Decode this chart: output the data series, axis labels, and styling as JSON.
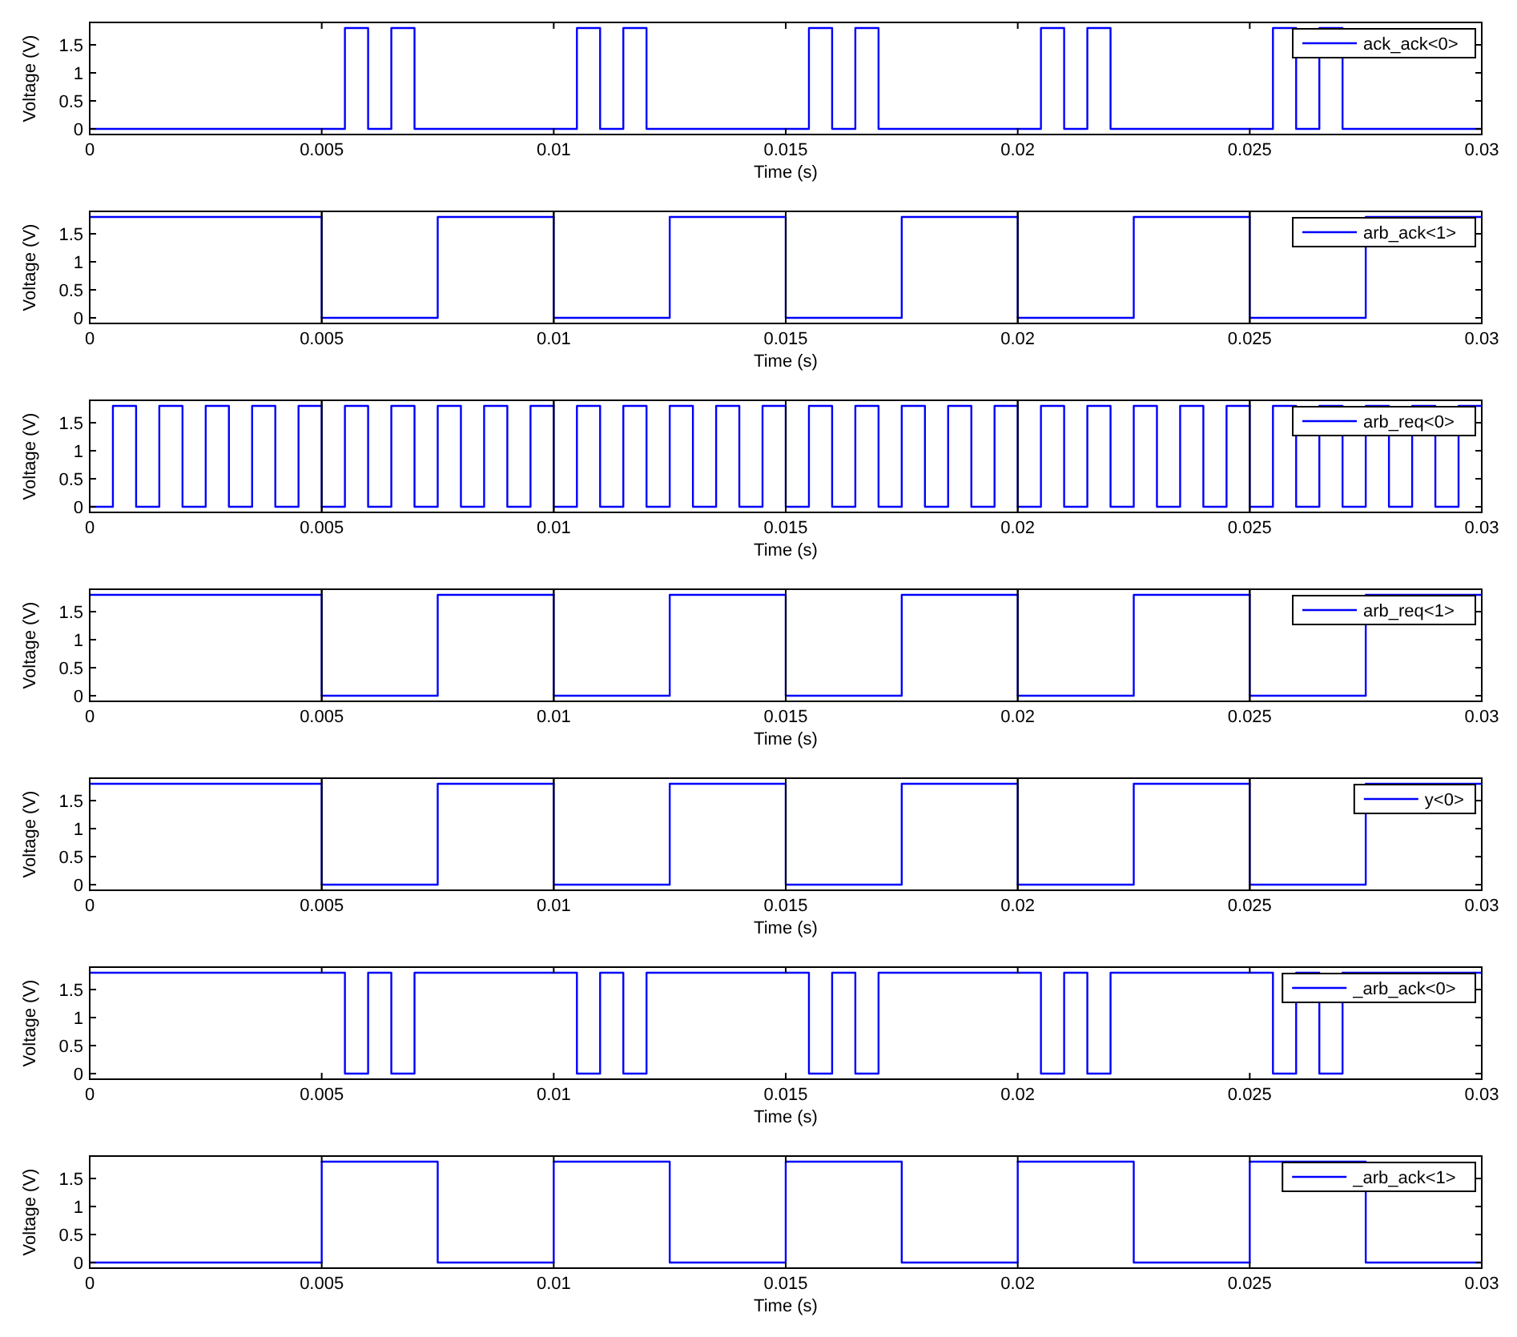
{
  "chart_data": [
    {
      "type": "step",
      "xlabel": "Time (s)",
      "ylabel": "Voltage (V)",
      "xlim": [
        0,
        0.03
      ],
      "ylim": [
        -0.1,
        1.9
      ],
      "xticks": [
        0,
        0.005,
        0.01,
        0.015,
        0.02,
        0.025,
        0.03
      ],
      "yticks": [
        0,
        0.5,
        1,
        1.5
      ],
      "grid": false,
      "legend": "top right",
      "line_style": "solid",
      "series": [
        {
          "name": "ack_ack<0>",
          "color": "#0000ff",
          "x": [
            0,
            0.0055,
            0.006,
            0.0065,
            0.007,
            0.0105,
            0.011,
            0.0115,
            0.012,
            0.0155,
            0.016,
            0.0165,
            0.017,
            0.0205,
            0.021,
            0.0215,
            0.022,
            0.0255,
            0.026,
            0.0265,
            0.027,
            0.03
          ],
          "values": [
            0,
            1.8,
            0,
            1.8,
            0,
            1.8,
            0,
            1.8,
            0,
            1.8,
            0,
            1.8,
            0,
            1.8,
            0,
            1.8,
            0,
            1.8,
            0,
            1.8,
            0,
            0
          ]
        }
      ]
    },
    {
      "type": "step",
      "xlabel": "Time (s)",
      "ylabel": "Voltage (V)",
      "xlim": [
        0,
        0.03
      ],
      "ylim": [
        -0.1,
        1.9
      ],
      "xticks": [
        0,
        0.005,
        0.01,
        0.015,
        0.02,
        0.025,
        0.03
      ],
      "yticks": [
        0,
        0.5,
        1,
        1.5
      ],
      "grid": false,
      "legend": "top right",
      "line_style": "solid",
      "ref_lines": [
        {
          "axis": "x",
          "value": 0.005,
          "color": "#000000"
        },
        {
          "axis": "x",
          "value": 0.01,
          "color": "#000000"
        },
        {
          "axis": "x",
          "value": 0.015,
          "color": "#000000"
        },
        {
          "axis": "x",
          "value": 0.02,
          "color": "#000000"
        },
        {
          "axis": "x",
          "value": 0.025,
          "color": "#000000"
        }
      ],
      "series": [
        {
          "name": "arb_ack<1>",
          "color": "#0000ff",
          "x": [
            0,
            0.005,
            0.0075,
            0.01,
            0.0125,
            0.015,
            0.0175,
            0.02,
            0.0225,
            0.025,
            0.0275,
            0.03
          ],
          "values": [
            1.8,
            0,
            1.8,
            0,
            1.8,
            0,
            1.8,
            0,
            1.8,
            0,
            1.8,
            1.8
          ]
        }
      ]
    },
    {
      "type": "step",
      "xlabel": "Time (s)",
      "ylabel": "Voltage (V)",
      "xlim": [
        0,
        0.03
      ],
      "ylim": [
        -0.1,
        1.9
      ],
      "xticks": [
        0,
        0.005,
        0.01,
        0.015,
        0.02,
        0.025,
        0.03
      ],
      "yticks": [
        0,
        0.5,
        1,
        1.5
      ],
      "grid": false,
      "legend": "top right",
      "line_style": "solid",
      "ref_lines": [
        {
          "axis": "x",
          "value": 0.005,
          "color": "#000000"
        },
        {
          "axis": "x",
          "value": 0.01,
          "color": "#000000"
        },
        {
          "axis": "x",
          "value": 0.015,
          "color": "#000000"
        },
        {
          "axis": "x",
          "value": 0.02,
          "color": "#000000"
        },
        {
          "axis": "x",
          "value": 0.025,
          "color": "#000000"
        }
      ],
      "series": [
        {
          "name": "arb_req<0>",
          "color": "#0000ff",
          "x": [
            0,
            0.0005,
            0.001,
            0.0015,
            0.002,
            0.0025,
            0.003,
            0.0035,
            0.004,
            0.0045,
            0.005,
            0.0055,
            0.006,
            0.0065,
            0.007,
            0.0075,
            0.008,
            0.0085,
            0.009,
            0.0095,
            0.01,
            0.0105,
            0.011,
            0.0115,
            0.012,
            0.0125,
            0.013,
            0.0135,
            0.014,
            0.0145,
            0.015,
            0.0155,
            0.016,
            0.0165,
            0.017,
            0.0175,
            0.018,
            0.0185,
            0.019,
            0.0195,
            0.02,
            0.0205,
            0.021,
            0.0215,
            0.022,
            0.0225,
            0.023,
            0.0235,
            0.024,
            0.0245,
            0.025,
            0.0255,
            0.026,
            0.0265,
            0.027,
            0.0275,
            0.028,
            0.0285,
            0.029,
            0.0295,
            0.03
          ],
          "values": [
            0,
            1.8,
            0,
            1.8,
            0,
            1.8,
            0,
            1.8,
            0,
            1.8,
            0,
            1.8,
            0,
            1.8,
            0,
            1.8,
            0,
            1.8,
            0,
            1.8,
            0,
            1.8,
            0,
            1.8,
            0,
            1.8,
            0,
            1.8,
            0,
            1.8,
            0,
            1.8,
            0,
            1.8,
            0,
            1.8,
            0,
            1.8,
            0,
            1.8,
            0,
            1.8,
            0,
            1.8,
            0,
            1.8,
            0,
            1.8,
            0,
            1.8,
            0,
            1.8,
            0,
            1.8,
            0,
            1.8,
            0,
            1.8,
            0,
            1.8,
            1.8
          ]
        }
      ]
    },
    {
      "type": "step",
      "xlabel": "Time (s)",
      "ylabel": "Voltage (V)",
      "xlim": [
        0,
        0.03
      ],
      "ylim": [
        -0.1,
        1.9
      ],
      "xticks": [
        0,
        0.005,
        0.01,
        0.015,
        0.02,
        0.025,
        0.03
      ],
      "yticks": [
        0,
        0.5,
        1,
        1.5
      ],
      "grid": false,
      "legend": "top right",
      "line_style": "solid",
      "ref_lines": [
        {
          "axis": "x",
          "value": 0.005,
          "color": "#000000"
        },
        {
          "axis": "x",
          "value": 0.01,
          "color": "#000000"
        },
        {
          "axis": "x",
          "value": 0.015,
          "color": "#000000"
        },
        {
          "axis": "x",
          "value": 0.02,
          "color": "#000000"
        },
        {
          "axis": "x",
          "value": 0.025,
          "color": "#000000"
        }
      ],
      "series": [
        {
          "name": "arb_req<1>",
          "color": "#0000ff",
          "x": [
            0,
            0.005,
            0.0075,
            0.01,
            0.0125,
            0.015,
            0.0175,
            0.02,
            0.0225,
            0.025,
            0.0275,
            0.03
          ],
          "values": [
            1.8,
            0,
            1.8,
            0,
            1.8,
            0,
            1.8,
            0,
            1.8,
            0,
            1.8,
            1.8
          ]
        }
      ]
    },
    {
      "type": "step",
      "xlabel": "Time (s)",
      "ylabel": "Voltage (V)",
      "xlim": [
        0,
        0.03
      ],
      "ylim": [
        -0.1,
        1.9
      ],
      "xticks": [
        0,
        0.005,
        0.01,
        0.015,
        0.02,
        0.025,
        0.03
      ],
      "yticks": [
        0,
        0.5,
        1,
        1.5
      ],
      "grid": false,
      "legend": "top right",
      "line_style": "solid",
      "ref_lines": [
        {
          "axis": "x",
          "value": 0.005,
          "color": "#000000"
        },
        {
          "axis": "x",
          "value": 0.01,
          "color": "#000000"
        },
        {
          "axis": "x",
          "value": 0.015,
          "color": "#000000"
        },
        {
          "axis": "x",
          "value": 0.02,
          "color": "#000000"
        },
        {
          "axis": "x",
          "value": 0.025,
          "color": "#000000"
        }
      ],
      "series": [
        {
          "name": "y<0>",
          "color": "#0000ff",
          "x": [
            0,
            0.005,
            0.0075,
            0.01,
            0.0125,
            0.015,
            0.0175,
            0.02,
            0.0225,
            0.025,
            0.0275,
            0.03
          ],
          "values": [
            1.8,
            0,
            1.8,
            0,
            1.8,
            0,
            1.8,
            0,
            1.8,
            0,
            1.8,
            1.8
          ]
        }
      ]
    },
    {
      "type": "step",
      "xlabel": "Time (s)",
      "ylabel": "Voltage (V)",
      "xlim": [
        0,
        0.03
      ],
      "ylim": [
        -0.1,
        1.9
      ],
      "xticks": [
        0,
        0.005,
        0.01,
        0.015,
        0.02,
        0.025,
        0.03
      ],
      "yticks": [
        0,
        0.5,
        1,
        1.5
      ],
      "grid": false,
      "legend": "top right",
      "line_style": "solid",
      "series": [
        {
          "name": "_arb_ack<0>",
          "color": "#0000ff",
          "x": [
            0,
            0.0055,
            0.006,
            0.0065,
            0.007,
            0.0105,
            0.011,
            0.0115,
            0.012,
            0.0155,
            0.016,
            0.0165,
            0.017,
            0.0205,
            0.021,
            0.0215,
            0.022,
            0.0255,
            0.026,
            0.0265,
            0.027,
            0.03
          ],
          "values": [
            1.8,
            0,
            1.8,
            0,
            1.8,
            0,
            1.8,
            0,
            1.8,
            0,
            1.8,
            0,
            1.8,
            0,
            1.8,
            0,
            1.8,
            0,
            1.8,
            0,
            1.8,
            1.8
          ]
        }
      ]
    },
    {
      "type": "step",
      "xlabel": "Time (s)",
      "ylabel": "Voltage (V)",
      "xlim": [
        0,
        0.03
      ],
      "ylim": [
        -0.1,
        1.9
      ],
      "xticks": [
        0,
        0.005,
        0.01,
        0.015,
        0.02,
        0.025,
        0.03
      ],
      "yticks": [
        0,
        0.5,
        1,
        1.5
      ],
      "grid": false,
      "legend": "top right",
      "line_style": "solid",
      "series": [
        {
          "name": "_arb_ack<1>",
          "color": "#0000ff",
          "x": [
            0,
            0.005,
            0.0075,
            0.01,
            0.0125,
            0.015,
            0.0175,
            0.02,
            0.0225,
            0.025,
            0.0275,
            0.03
          ],
          "values": [
            0,
            1.8,
            0,
            1.8,
            0,
            1.8,
            0,
            1.8,
            0,
            1.8,
            0,
            0
          ]
        }
      ]
    }
  ]
}
